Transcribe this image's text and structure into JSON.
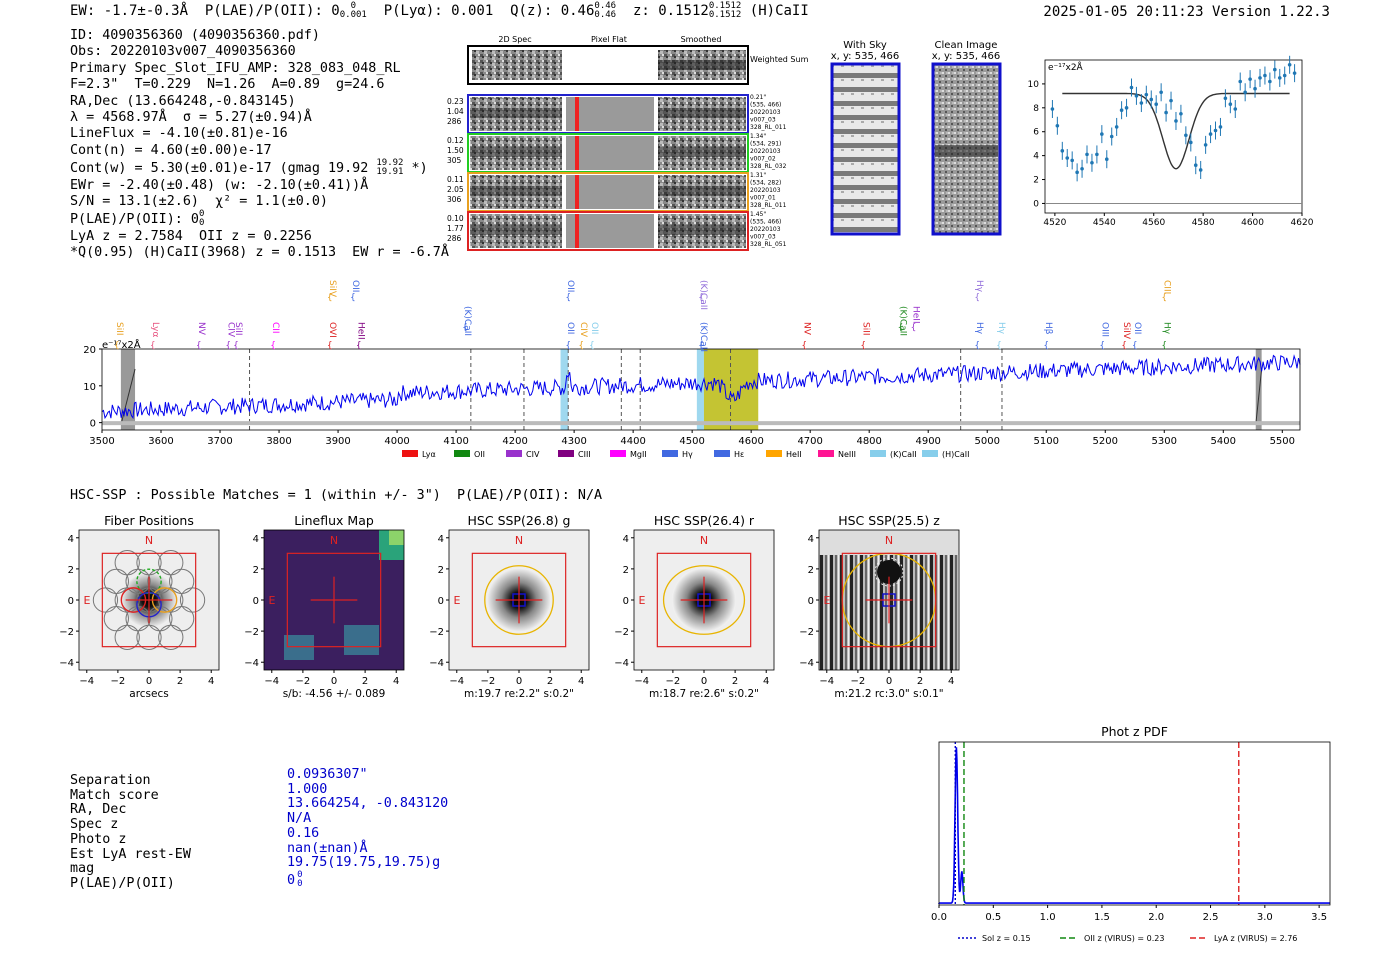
{
  "header": {
    "ew": "EW: -1.7±-0.3Å",
    "plae": "P(LAE)/P(OII): 0",
    "plae_sup": "0",
    "plae_sub": "0.001",
    "plya": "P(Lyα): 0.001",
    "qz": "Q(z): 0.46",
    "qz_sup": "0.46",
    "qz_sub": "0.46",
    "z": "z: 0.1512",
    "z_sup": "0.1512",
    "z_sub": "0.1512",
    "line": "(H)CaII",
    "datetime": "2025-01-05 20:11:23",
    "version": "Version 1.22.3"
  },
  "info": {
    "id": "ID: 4090356360 (4090356360.pdf)",
    "obs": "Obs: 20220103v007_4090356360",
    "primary": "Primary Spec_Slot_IFU_AMP: 328_083_048_RL",
    "params": "F=2.3\"  T=0.229  N=1.26  A=0.89  g=24.6",
    "radec": "RA,Dec (13.664248,-0.843145)",
    "lambda": "λ = 4568.97Å  σ = 5.27(±0.94)Å",
    "lineflux": "LineFlux = -4.10(±0.81)e-16",
    "contn": "Cont(n) = 4.60(±0.00)e-17",
    "contw": "Cont(w) = 5.30(±0.01)e-17 (gmag 19.92",
    "contw_sup": "19.92",
    "contw_sub": "19.91",
    "contw_end": "*)",
    "ewr": "EWr = -2.40(±0.48) (w: -2.10(±0.41))Å",
    "sn": "S/N = 13.1(±2.6)  χ² = 1.1(±0.0)",
    "plae": "P(LAE)/P(OII): 0",
    "plae_sup": "0",
    "plae_sub": "0",
    "lya": "LyA z = 2.7584  OII z = 0.2256",
    "q": "*Q(0.95) (H)CaII(3968) z = 0.1513  EW r = -6.7Å"
  },
  "cutouts": {
    "col_2d": "2D Spec",
    "col_flat": "Pixel Flat",
    "col_smooth": "Smoothed",
    "weighted": "Weighted Sum",
    "rows": [
      {
        "left": [
          "0.23",
          "1.04",
          "286"
        ],
        "right": [
          "0.21\"",
          "(535, 466)",
          "20220103",
          "v007_03",
          "328_RL_011"
        ],
        "color": "#2222cc"
      },
      {
        "left": [
          "0.12",
          "1.50",
          "305"
        ],
        "right": [
          "1.34\"",
          "(534, 291)",
          "20220103",
          "v007_02",
          "328_RL_032"
        ],
        "color": "#22cc22"
      },
      {
        "left": [
          "0.11",
          "2.05",
          "306"
        ],
        "right": [
          "1.31\"",
          "(534, 282)",
          "20220103",
          "v007_01",
          "328_RL_011"
        ],
        "color": "#e8a020"
      },
      {
        "left": [
          "0.10",
          "1.77",
          "286"
        ],
        "right": [
          "1.45\"",
          "(535, 466)",
          "20220103",
          "v007_03",
          "328_RL_051"
        ],
        "color": "#dd2222"
      }
    ],
    "with_sky": "With Sky",
    "with_sky_xy": "x, y: 535, 466",
    "clean": "Clean Image",
    "clean_xy": "x, y: 535, 466"
  },
  "zoom_chart": {
    "type": "scatter",
    "ylabel": "e⁻¹⁷x2Å",
    "xlim": [
      4516,
      4620
    ],
    "ylim": [
      -0.8,
      12
    ],
    "xticks": [
      "4520",
      "4540",
      "4560",
      "4580",
      "4600",
      "4620"
    ],
    "yticks": [
      "0",
      "2",
      "4",
      "6",
      "8",
      "10"
    ],
    "x": [
      4519,
      4521,
      4523,
      4525,
      4527,
      4529,
      4531,
      4533,
      4535,
      4537,
      4539,
      4541,
      4543,
      4545,
      4547,
      4549,
      4551,
      4553,
      4555,
      4557,
      4559,
      4561,
      4563,
      4565,
      4567,
      4569,
      4571,
      4573,
      4575,
      4577,
      4579,
      4581,
      4583,
      4585,
      4587,
      4589,
      4591,
      4593,
      4595,
      4597,
      4599,
      4601,
      4603,
      4605,
      4607,
      4609,
      4611,
      4613,
      4615,
      4617
    ],
    "y": [
      7.9,
      6.5,
      4.4,
      3.8,
      3.6,
      2.6,
      2.9,
      4.1,
      3.4,
      4.1,
      5.8,
      3.7,
      5.6,
      6.4,
      7.8,
      8.0,
      9.7,
      9.0,
      8.4,
      9.1,
      8.7,
      8.3,
      9.3,
      7.6,
      8.6,
      6.9,
      7.5,
      5.7,
      5.1,
      3.2,
      2.8,
      4.9,
      5.8,
      6.1,
      6.4,
      8.8,
      8.3,
      7.9,
      10.2,
      9.3,
      10.4,
      9.6,
      10.5,
      10.7,
      10.2,
      11.2,
      10.5,
      10.7,
      11.6,
      10.9
    ],
    "fit": {
      "center": 4569,
      "sigma": 5.3,
      "continuum": 9.2,
      "depth": 6.3
    }
  },
  "spectrum": {
    "type": "line",
    "ylabel": "e⁻¹⁷x2Å",
    "xlim": [
      3500,
      5530
    ],
    "ylim": [
      -2,
      20
    ],
    "xticks": [
      "3500",
      "3600",
      "3700",
      "3800",
      "3900",
      "4000",
      "4100",
      "4200",
      "4300",
      "4400",
      "4500",
      "4600",
      "4700",
      "4800",
      "4900",
      "5000",
      "5100",
      "5200",
      "5300",
      "5400",
      "5500"
    ],
    "yticks": [
      "0",
      "10",
      "20"
    ],
    "dashed_lines": [
      3750,
      4125,
      4215,
      4290,
      4380,
      4412,
      4565,
      4955,
      5025
    ],
    "shaded": [
      {
        "x0": 4277,
        "x1": 4290,
        "color": "#87ceeb"
      },
      {
        "x0": 4508,
        "x1": 4520,
        "color": "#87ceeb"
      },
      {
        "x0": 4520,
        "x1": 4612,
        "color": "#b5b500"
      }
    ],
    "masked": [
      {
        "x0": 3532,
        "x1": 3556
      },
      {
        "x0": 5455,
        "x1": 5465
      }
    ],
    "line_labels": [
      {
        "x": 3525,
        "t": "SiII",
        "c": "#e8a020",
        "row": "low"
      },
      {
        "x": 3586,
        "t": "Lyα",
        "c": "#e75480",
        "row": "low"
      },
      {
        "x": 3664,
        "t": "NV",
        "c": "#9932cc",
        "row": "low"
      },
      {
        "x": 3714,
        "t": "CIV",
        "c": "#9932cc",
        "row": "low"
      },
      {
        "x": 3727,
        "t": "SiII",
        "c": "#9932cc",
        "row": "low"
      },
      {
        "x": 3790,
        "t": "CII",
        "c": "#ff00ff",
        "row": "low"
      },
      {
        "x": 3886,
        "t": "OVI",
        "c": "#dd2222",
        "row": "low"
      },
      {
        "x": 3935,
        "t": "HeII",
        "c": "#800080",
        "row": "low"
      },
      {
        "x": 3886,
        "t": "SiIV",
        "c": "#e8a020",
        "row": "high"
      },
      {
        "x": 3925,
        "t": "OII",
        "c": "#4169e1",
        "row": "high"
      },
      {
        "x": 4115,
        "t": "(K)CaII",
        "c": "#4169e1",
        "row": "mid"
      },
      {
        "x": 4290,
        "t": "OII",
        "c": "#4169e1",
        "row": "low"
      },
      {
        "x": 4312,
        "t": "CIV",
        "c": "#e8a020",
        "row": "low"
      },
      {
        "x": 4330,
        "t": "OII",
        "c": "#87ceeb",
        "row": "low"
      },
      {
        "x": 4290,
        "t": "OII",
        "c": "#4169e1",
        "row": "high"
      },
      {
        "x": 4515,
        "t": "(K)CaII",
        "c": "#4169e1",
        "row": "low"
      },
      {
        "x": 4515,
        "t": "(K)CaII",
        "c": "#9370db",
        "row": "high"
      },
      {
        "x": 4690,
        "t": "NV",
        "c": "#dd2222",
        "row": "low"
      },
      {
        "x": 4790,
        "t": "SiII",
        "c": "#dd2222",
        "row": "low"
      },
      {
        "x": 4853,
        "t": "(K)CaII",
        "c": "#228B22",
        "row": "mid"
      },
      {
        "x": 4875,
        "t": "HeII",
        "c": "#9932cc",
        "row": "mid"
      },
      {
        "x": 4983,
        "t": "Hγ",
        "c": "#4169e1",
        "row": "low"
      },
      {
        "x": 5020,
        "t": "Hγ",
        "c": "#87ceeb",
        "row": "low"
      },
      {
        "x": 4983,
        "t": "Hγ",
        "c": "#9370db",
        "row": "high"
      },
      {
        "x": 5100,
        "t": "Hβ",
        "c": "#4169e1",
        "row": "low"
      },
      {
        "x": 5195,
        "t": "OIII",
        "c": "#4169e1",
        "row": "low"
      },
      {
        "x": 5232,
        "t": "SiIV",
        "c": "#dd2222",
        "row": "low"
      },
      {
        "x": 5250,
        "t": "OII",
        "c": "#4169e1",
        "row": "low"
      },
      {
        "x": 5300,
        "t": "Hγ",
        "c": "#228B22",
        "row": "low"
      },
      {
        "x": 5300,
        "t": "CIII",
        "c": "#e8a020",
        "row": "high"
      }
    ],
    "legend": [
      {
        "t": "Lyα",
        "c": "#ee1111"
      },
      {
        "t": "OII",
        "c": "#118811"
      },
      {
        "t": "CIV",
        "c": "#9932cc"
      },
      {
        "t": "CIII",
        "c": "#800080"
      },
      {
        "t": "MgII",
        "c": "#ff00ff"
      },
      {
        "t": "Hγ",
        "c": "#4169e1"
      },
      {
        "t": "Hε",
        "c": "#4169e1"
      },
      {
        "t": "HeII",
        "c": "#ffa500"
      },
      {
        "t": "NeIII",
        "c": "#ff1493"
      },
      {
        "t": "(K)CaII",
        "c": "#87ceeb"
      },
      {
        "t": "(H)CaII",
        "c": "#87ceeb"
      }
    ]
  },
  "hsc": {
    "title": "HSC-SSP : Possible Matches = 1 (within +/- 3\")  P(LAE)/P(OII): N/A",
    "panels": [
      {
        "title": "Fiber Positions",
        "xlabel": "arcsecs"
      },
      {
        "title": "Lineflux Map",
        "xlabel": "s/b: -4.56 +/- 0.089"
      },
      {
        "title": "HSC SSP(26.8) g",
        "xlabel": "m:19.7  re:2.2\"  s:0.2\""
      },
      {
        "title": "HSC SSP(26.4) r",
        "xlabel": "m:18.7  re:2.6\"  s:0.2\""
      },
      {
        "title": "HSC SSP(25.5) z",
        "xlabel": "m:21.2 rc:3.0\"  s:0.1\""
      }
    ],
    "ticks": [
      "−4",
      "−2",
      "0",
      "2",
      "4"
    ],
    "yticks": [
      "4",
      "2",
      "0",
      "−2",
      "−4"
    ],
    "north": "N",
    "east": "E"
  },
  "match": {
    "labels": [
      "Separation",
      "Match score",
      "RA, Dec",
      "Spec z",
      "Photo z",
      "Est LyA rest-EW",
      "mag",
      "P(LAE)/P(OII)"
    ],
    "values": [
      "0.0936307\"",
      "1.000",
      "13.664254, -0.843120",
      "N/A",
      "0.16",
      "nan(±nan)Å",
      "19.75(19.75,19.75)g",
      "0"
    ],
    "plae_sup": "0",
    "plae_sub": "0"
  },
  "photz": {
    "type": "line",
    "title": "Phot z PDF",
    "xlim": [
      0,
      3.6
    ],
    "xticks": [
      "0.0",
      "0.5",
      "1.0",
      "1.5",
      "2.0",
      "2.5",
      "3.0",
      "3.5"
    ],
    "sol_z": 0.15,
    "oii_z": 0.23,
    "lya_z": 2.76,
    "legend": [
      "Sol z = 0.15",
      "OII z (VIRUS) = 0.23",
      "LyA z (VIRUS) = 2.76"
    ]
  }
}
